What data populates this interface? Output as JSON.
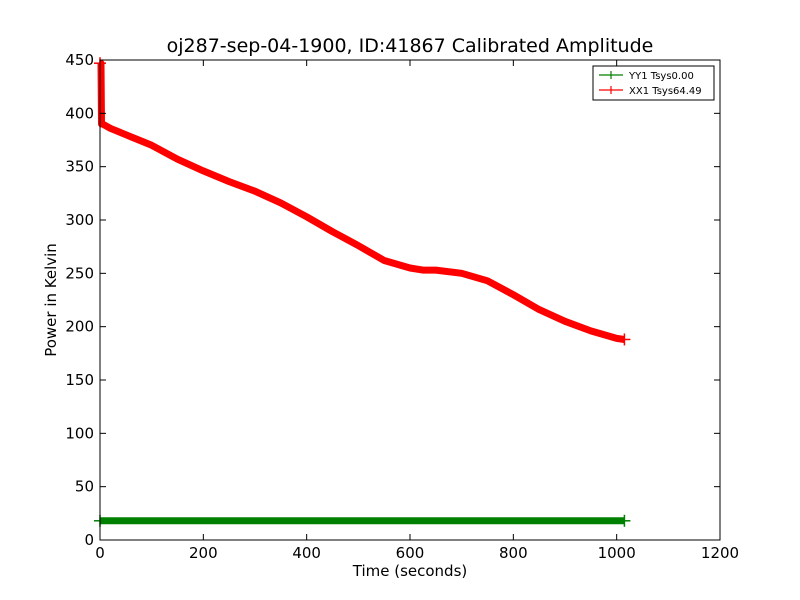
{
  "chart_data": {
    "type": "line",
    "title": "oj287-sep-04-1900, ID:41867 Calibrated Amplitude",
    "xlabel": "Time (seconds)",
    "ylabel": "Power in Kelvin",
    "xlim": [
      0,
      1200
    ],
    "ylim": [
      0,
      450
    ],
    "xticks": [
      0,
      200,
      400,
      600,
      800,
      1000,
      1200
    ],
    "yticks": [
      0,
      50,
      100,
      150,
      200,
      250,
      300,
      350,
      400,
      450
    ],
    "grid": false,
    "legend_position": "top-right",
    "series": [
      {
        "name": "YY1 Tsys0.00",
        "color": "#008000",
        "x": [
          0,
          100,
          200,
          300,
          400,
          500,
          600,
          700,
          800,
          900,
          1000,
          1015
        ],
        "y": [
          18,
          18,
          18,
          18,
          18,
          18,
          18,
          18,
          18,
          18,
          18,
          18
        ]
      },
      {
        "name": "XX1 Tsys64.49",
        "color": "#ff0000",
        "x": [
          0,
          2,
          3,
          5,
          20,
          50,
          100,
          150,
          200,
          250,
          300,
          350,
          400,
          450,
          500,
          550,
          600,
          625,
          650,
          700,
          750,
          800,
          850,
          900,
          950,
          1000,
          1015
        ],
        "y": [
          447,
          447,
          390,
          390,
          386,
          380,
          370,
          357,
          346,
          336,
          327,
          316,
          303,
          289,
          276,
          262,
          255,
          253,
          253,
          250,
          243,
          230,
          216,
          205,
          196,
          189,
          188
        ]
      }
    ]
  }
}
